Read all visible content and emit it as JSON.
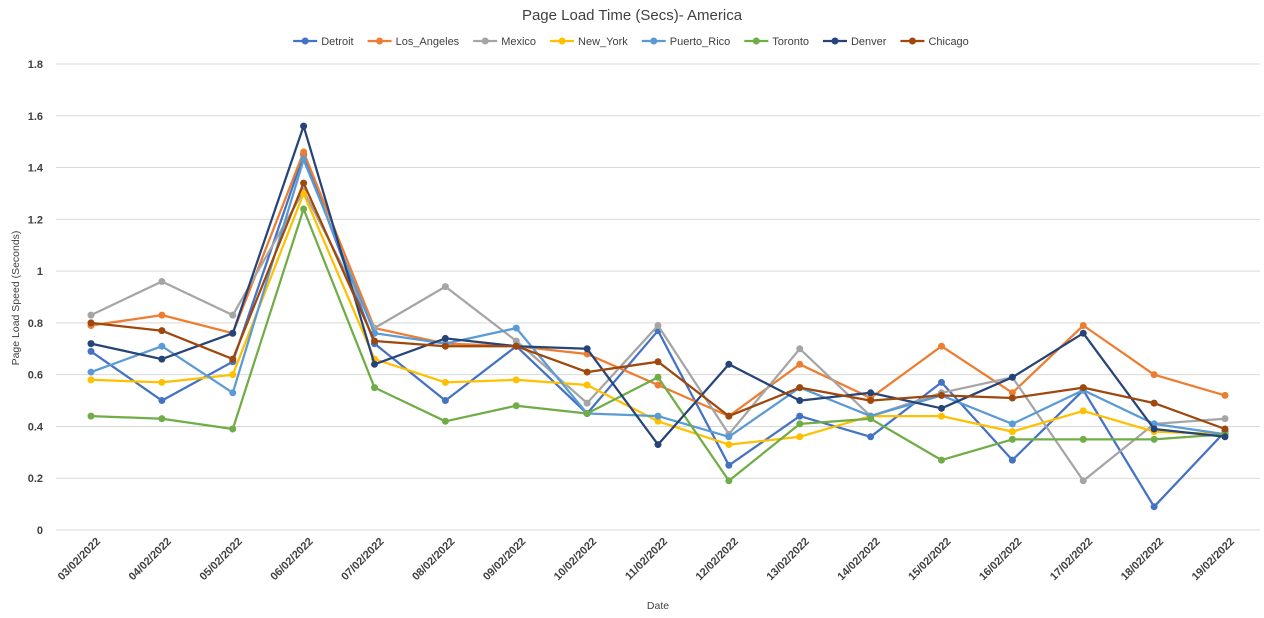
{
  "chart_data": {
    "type": "line",
    "title": "Page Load Time (Secs)- America",
    "xlabel": "Date",
    "ylabel": "Page Load Speed (Seconds)",
    "ylim": [
      0,
      1.8
    ],
    "yticks": [
      "0",
      "0.2",
      "0.4",
      "0.6",
      "0.8",
      "1",
      "1.2",
      "1.4",
      "1.6",
      "1.8"
    ],
    "grid": true,
    "legend_position": "top",
    "categories": [
      "03/02/2022",
      "04/02/2022",
      "05/02/2022",
      "06/02/2022",
      "07/02/2022",
      "08/02/2022",
      "09/02/2022",
      "10/02/2022",
      "11/02/2022",
      "12/02/2022",
      "13/02/2022",
      "14/02/2022",
      "15/02/2022",
      "16/02/2022",
      "17/02/2022",
      "18/02/2022",
      "19/02/2022"
    ],
    "series": [
      {
        "name": "Detroit",
        "color": "#4472C4",
        "values": [
          0.69,
          0.5,
          0.65,
          1.45,
          0.72,
          0.5,
          0.71,
          0.45,
          0.77,
          0.25,
          0.44,
          0.36,
          0.57,
          0.27,
          0.54,
          0.09,
          0.38
        ]
      },
      {
        "name": "Los_Angeles",
        "color": "#ED7D31",
        "values": [
          0.79,
          0.83,
          0.76,
          1.46,
          0.78,
          0.72,
          0.71,
          0.68,
          0.56,
          0.44,
          0.64,
          0.51,
          0.71,
          0.53,
          0.79,
          0.6,
          0.52
        ]
      },
      {
        "name": "Mexico",
        "color": "#A5A5A5",
        "values": [
          0.83,
          0.96,
          0.83,
          1.31,
          0.78,
          0.94,
          0.73,
          0.49,
          0.79,
          0.37,
          0.7,
          0.44,
          0.53,
          0.59,
          0.19,
          0.41,
          0.43
        ]
      },
      {
        "name": "New_York",
        "color": "#FFC000",
        "values": [
          0.58,
          0.57,
          0.6,
          1.3,
          0.66,
          0.57,
          0.58,
          0.56,
          0.42,
          0.33,
          0.36,
          0.44,
          0.44,
          0.38,
          0.46,
          0.38,
          0.37
        ]
      },
      {
        "name": "Puerto_Rico",
        "color": "#5B9BD5",
        "values": [
          0.61,
          0.71,
          0.53,
          1.43,
          0.76,
          0.72,
          0.78,
          0.45,
          0.44,
          0.36,
          0.55,
          0.44,
          0.52,
          0.41,
          0.54,
          0.41,
          0.37
        ]
      },
      {
        "name": "Toronto",
        "color": "#70AD47",
        "values": [
          0.44,
          0.43,
          0.39,
          1.24,
          0.55,
          0.42,
          0.48,
          0.45,
          0.59,
          0.19,
          0.41,
          0.43,
          0.27,
          0.35,
          0.35,
          0.35,
          0.37
        ]
      },
      {
        "name": "Denver",
        "color": "#264478",
        "values": [
          0.72,
          0.66,
          0.76,
          1.56,
          0.64,
          0.74,
          0.71,
          0.7,
          0.33,
          0.64,
          0.5,
          0.53,
          0.47,
          0.59,
          0.76,
          0.39,
          0.36
        ]
      },
      {
        "name": "Chicago",
        "color": "#9E480E",
        "values": [
          0.8,
          0.77,
          0.66,
          1.34,
          0.73,
          0.71,
          0.71,
          0.61,
          0.65,
          0.44,
          0.55,
          0.5,
          0.52,
          0.51,
          0.55,
          0.49,
          0.39
        ]
      }
    ]
  }
}
